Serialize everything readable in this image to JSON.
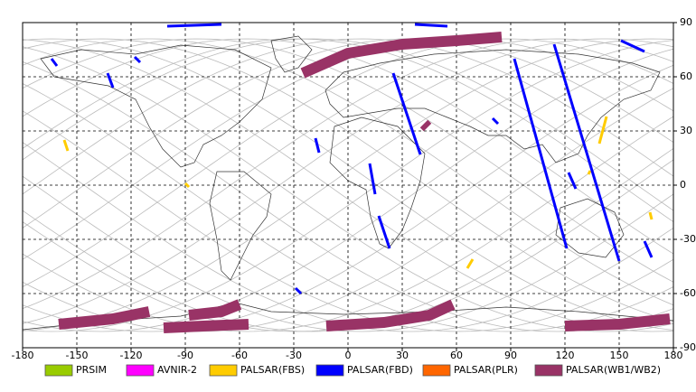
{
  "chart_data": {
    "type": "swath-map",
    "xlim": [
      -180,
      180
    ],
    "ylim": [
      -90,
      90
    ],
    "xticks": [
      -180,
      -150,
      -120,
      -90,
      -60,
      -30,
      0,
      30,
      60,
      90,
      120,
      150,
      180
    ],
    "yticks": [
      90,
      60,
      30,
      0,
      -30,
      -60,
      -90
    ],
    "grid": true,
    "series": [
      {
        "name": "PRSIM",
        "color": "#99cc00",
        "swaths": []
      },
      {
        "name": "AVNIR-2",
        "color": "#ff00ff",
        "swaths": []
      },
      {
        "name": "PALSAR(FBS)",
        "color": "#ffcc00",
        "swaths": [
          {
            "x": [
              -157,
              -155
            ],
            "y": [
              25,
              19
            ]
          },
          {
            "x": [
              139,
              143
            ],
            "y": [
              23,
              38
            ]
          },
          {
            "x": [
              66,
              69
            ],
            "y": [
              -46,
              -41
            ]
          },
          {
            "x": [
              -90,
              -88
            ],
            "y": [
              1,
              -1
            ]
          },
          {
            "x": [
              133,
              134
            ],
            "y": [
              6,
              8
            ]
          },
          {
            "x": [
              167,
              168
            ],
            "y": [
              -15,
              -19
            ]
          }
        ]
      },
      {
        "name": "PALSAR(FBD)",
        "color": "#0000ff",
        "swaths": [
          {
            "x": [
              -164,
              -161
            ],
            "y": [
              70,
              66
            ]
          },
          {
            "x": [
              -133,
              -130
            ],
            "y": [
              62,
              54
            ]
          },
          {
            "x": [
              -118,
              -115
            ],
            "y": [
              71,
              68
            ]
          },
          {
            "x": [
              25,
              40
            ],
            "y": [
              62,
              17
            ]
          },
          {
            "x": [
              92,
              121
            ],
            "y": [
              70,
              -35
            ]
          },
          {
            "x": [
              114,
              150
            ],
            "y": [
              78,
              -42
            ]
          },
          {
            "x": [
              151,
              164
            ],
            "y": [
              80,
              74
            ]
          },
          {
            "x": [
              12,
              15
            ],
            "y": [
              12,
              -5
            ]
          },
          {
            "x": [
              17,
              23
            ],
            "y": [
              -17,
              -35
            ]
          },
          {
            "x": [
              -29,
              -26
            ],
            "y": [
              -57,
              -60
            ]
          },
          {
            "x": [
              -18,
              -16
            ],
            "y": [
              26,
              18
            ]
          },
          {
            "x": [
              -100,
              -70
            ],
            "y": [
              88,
              89
            ]
          },
          {
            "x": [
              37,
              55
            ],
            "y": [
              89,
              88
            ]
          },
          {
            "x": [
              80,
              83
            ],
            "y": [
              37,
              34
            ]
          },
          {
            "x": [
              122,
              126
            ],
            "y": [
              7,
              -2
            ]
          },
          {
            "x": [
              164,
              168
            ],
            "y": [
              -31,
              -40
            ]
          }
        ]
      },
      {
        "name": "PALSAR(PLR)",
        "color": "#ff6600",
        "swaths": []
      },
      {
        "name": "PALSAR(WB1/WB2)",
        "color": "#993366",
        "swaths": [
          {
            "x": [
              -25,
              0,
              30,
              60,
              85
            ],
            "y": [
              62,
              73,
              78,
              80,
              82
            ]
          },
          {
            "x": [
              -160,
              -130,
              -110
            ],
            "y": [
              -77,
              -74,
              -70
            ]
          },
          {
            "x": [
              -88,
              -70,
              -60
            ],
            "y": [
              -72,
              -70,
              -66
            ]
          },
          {
            "x": [
              -102,
              -80,
              -55
            ],
            "y": [
              -79,
              -78,
              -77
            ]
          },
          {
            "x": [
              -12,
              20,
              45,
              58
            ],
            "y": [
              -78,
              -76,
              -72,
              -66
            ]
          },
          {
            "x": [
              120,
              150,
              178
            ],
            "y": [
              -78,
              -77,
              -74
            ]
          },
          {
            "x": [
              42,
              44
            ],
            "y": [
              34,
              32
            ]
          }
        ]
      }
    ]
  }
}
